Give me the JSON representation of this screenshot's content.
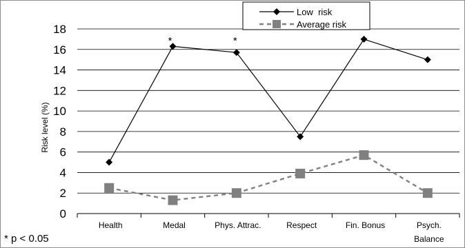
{
  "chart_data": {
    "type": "line",
    "ylabel": "Risk level (%)",
    "ylim": [
      0,
      18
    ],
    "yticks": [
      "0",
      "2",
      "4",
      "6",
      "8",
      "10",
      "12",
      "14",
      "16",
      "18"
    ],
    "grid": "horizontal",
    "legend_position": "top-right",
    "categories": [
      "Health",
      "Medal",
      "Phys. Attrac.",
      "Respect",
      "Fin. Bonus",
      "Psych. Balance"
    ],
    "category_lines": [
      [
        "Health"
      ],
      [
        "Medal"
      ],
      [
        "Phys. Attrac."
      ],
      [
        "Respect"
      ],
      [
        "Fin. Bonus"
      ],
      [
        "Psych.",
        "Balance"
      ]
    ],
    "series": [
      {
        "name": "Low  risk",
        "values": [
          5.0,
          16.3,
          15.7,
          7.5,
          17.0,
          15.0
        ],
        "color": "#000000",
        "marker": "diamond",
        "line": "solid"
      },
      {
        "name": "Average risk",
        "values": [
          2.5,
          1.3,
          2.0,
          3.9,
          5.7,
          2.0
        ],
        "color": "#808080",
        "marker": "square",
        "line": "dashed"
      }
    ],
    "annotations": [
      "*",
      "*"
    ],
    "annotation_categories": [
      1,
      2
    ],
    "footnote": "* p < 0.05"
  }
}
